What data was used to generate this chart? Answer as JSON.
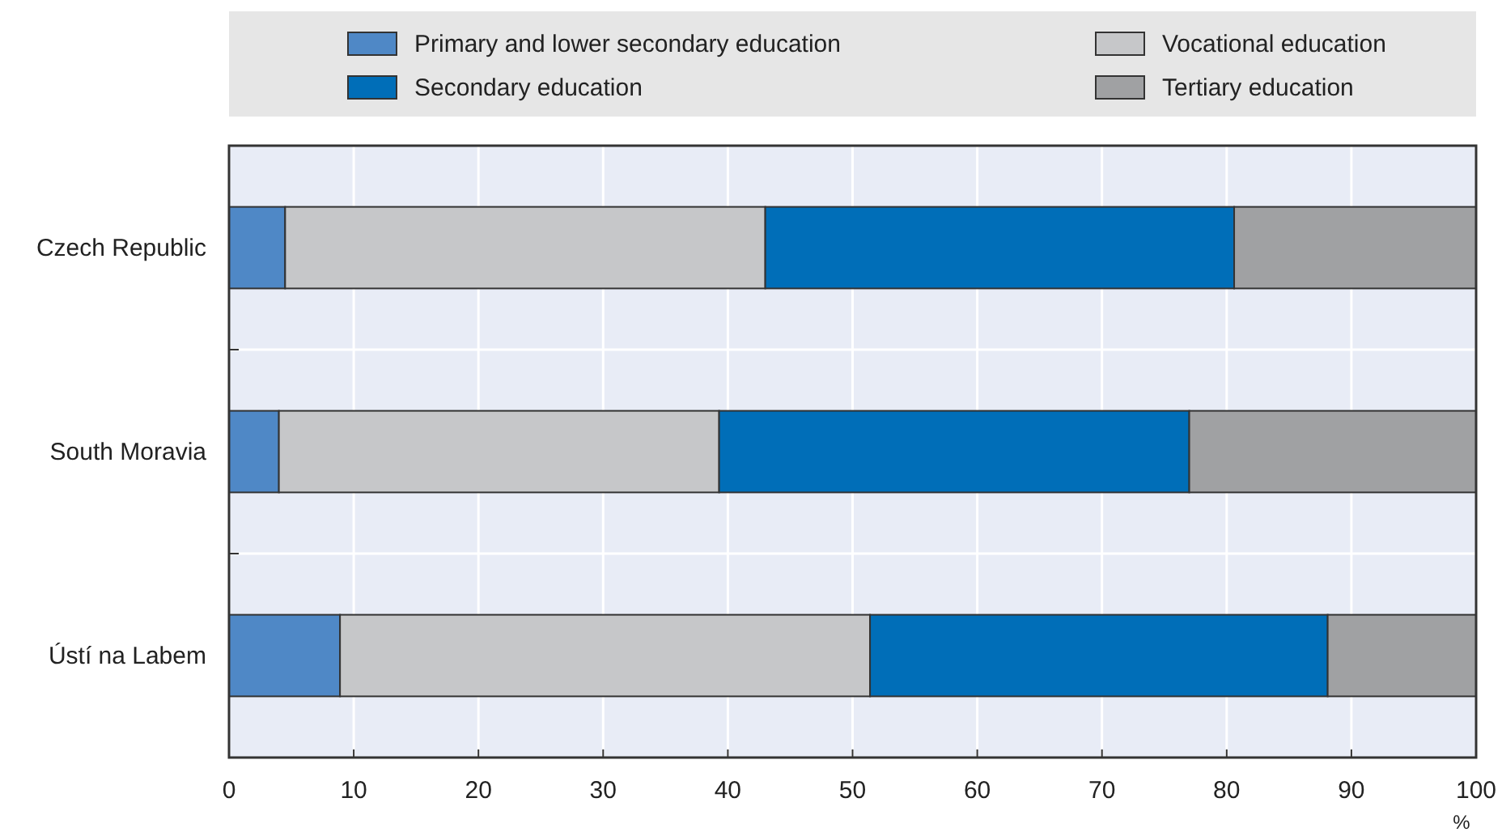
{
  "chart_data": {
    "type": "bar",
    "orientation": "horizontal",
    "stacked": true,
    "categories": [
      "Czech Republic",
      "South Moravia",
      "Ústí na Labem"
    ],
    "series": [
      {
        "name": "Primary and lower secondary education",
        "color": "#4f88c6",
        "values": [
          4.5,
          4.0,
          8.9
        ]
      },
      {
        "name": "Vocational education",
        "color": "#c6c7c9",
        "values": [
          38.5,
          35.3,
          42.5
        ]
      },
      {
        "name": "Secondary education",
        "color": "#006eb8",
        "values": [
          37.6,
          37.7,
          36.7
        ]
      },
      {
        "name": "Tertiary education",
        "color": "#a0a1a3",
        "values": [
          19.4,
          23.0,
          11.9
        ]
      }
    ],
    "xlabel": "%",
    "xlim": [
      0,
      100
    ],
    "xticks": [
      0,
      10,
      20,
      30,
      40,
      50,
      60,
      70,
      80,
      90,
      100
    ],
    "grid": true,
    "legend": "top"
  }
}
